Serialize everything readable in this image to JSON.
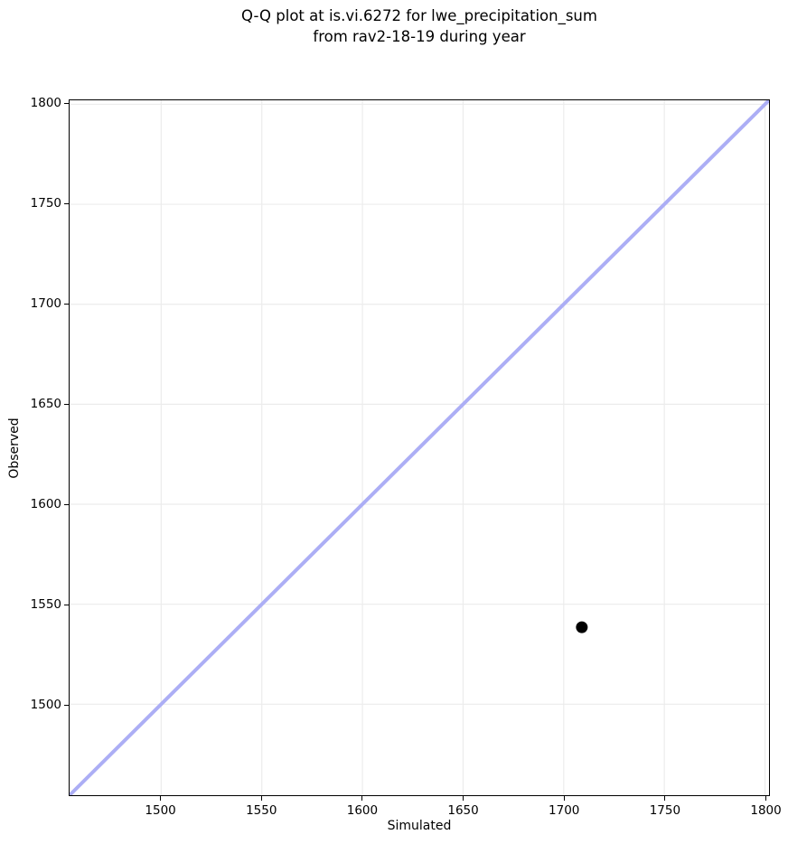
{
  "title": {
    "line1": "Q-Q plot at is.vi.6272 for lwe_precipitation_sum",
    "line2": "from rav2-18-19 during year"
  },
  "chart_data": {
    "type": "scatter",
    "title": "Q-Q plot at is.vi.6272 for lwe_precipitation_sum\nfrom rav2-18-19 during year",
    "xlabel": "Simulated",
    "ylabel": "Observed",
    "xlim": [
      1454.5,
      1802
    ],
    "ylim": [
      1454.5,
      1802
    ],
    "x_ticks": [
      1500,
      1550,
      1600,
      1650,
      1700,
      1750,
      1800
    ],
    "y_ticks": [
      1500,
      1550,
      1600,
      1650,
      1700,
      1750,
      1800
    ],
    "grid": true,
    "legend": "none",
    "points": [
      {
        "x": 1709,
        "y": 1538.5
      }
    ],
    "reference_line": {
      "kind": "identity",
      "x1": 1454.5,
      "y1": 1454.5,
      "x2": 1802,
      "y2": 1802
    },
    "colors": {
      "point": "#000000",
      "reference_line": "#acaef5",
      "grid": "#ececec",
      "spine": "#000000",
      "text": "#000000",
      "background": "#ffffff"
    }
  }
}
